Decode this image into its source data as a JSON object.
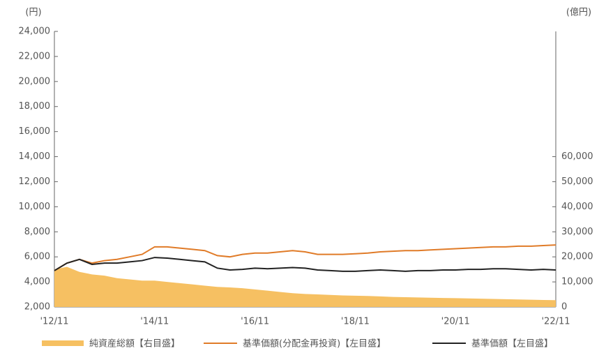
{
  "chart_data": {
    "type": "line",
    "y_unit": "(円)",
    "y2_unit": "(億円)",
    "categories": [
      "'12/11",
      null,
      null,
      null,
      null,
      null,
      null,
      null,
      "'14/11",
      null,
      null,
      null,
      null,
      null,
      null,
      null,
      "'16/11",
      null,
      null,
      null,
      null,
      null,
      null,
      null,
      "'18/11",
      null,
      null,
      null,
      null,
      null,
      null,
      null,
      "'20/11",
      null,
      null,
      null,
      null,
      null,
      null,
      null,
      "'22/11"
    ],
    "ylim": [
      2000,
      24000
    ],
    "yticks": [
      {
        "value": 2000,
        "label": "2,000"
      },
      {
        "value": 4000,
        "label": "4,000"
      },
      {
        "value": 6000,
        "label": "6,000"
      },
      {
        "value": 8000,
        "label": "8,000"
      },
      {
        "value": 10000,
        "label": "10,000"
      },
      {
        "value": 12000,
        "label": "12,000"
      },
      {
        "value": 14000,
        "label": "14,000"
      },
      {
        "value": 16000,
        "label": "16,000"
      },
      {
        "value": 18000,
        "label": "18,000"
      },
      {
        "value": 20000,
        "label": "20,000"
      },
      {
        "value": 22000,
        "label": "22,000"
      },
      {
        "value": 24000,
        "label": "24,000"
      }
    ],
    "y2lim": [
      0,
      110000
    ],
    "y2ticks": [
      0,
      {
        "value": 10000,
        "label": "10,000"
      },
      {
        "value": 20000,
        "label": "20,000"
      },
      {
        "value": 30000,
        "label": "30,000"
      },
      {
        "value": 40000,
        "label": "40,000"
      },
      {
        "value": 50000,
        "label": "50,000"
      },
      {
        "value": 60000,
        "label": "60,000"
      }
    ],
    "series": [
      {
        "name": "純資産総額【右目盛】",
        "color": "#f6c062",
        "kind": "area",
        "axis": "y2",
        "values": [
          15000,
          16000,
          14000,
          13000,
          12500,
          11500,
          11000,
          10500,
          10500,
          10000,
          9500,
          9000,
          8500,
          8000,
          7800,
          7500,
          7000,
          6500,
          6000,
          5500,
          5200,
          5000,
          4800,
          4600,
          4500,
          4400,
          4200,
          4000,
          3900,
          3800,
          3700,
          3600,
          3500,
          3400,
          3300,
          3200,
          3100,
          3000,
          2900,
          2800,
          2700
        ]
      },
      {
        "name": "基準価額(分配金再投資)【左目盛】",
        "color": "#e07b28",
        "kind": "line",
        "values": [
          4900,
          5500,
          5800,
          5500,
          5700,
          5800,
          6000,
          6200,
          6800,
          6800,
          6700,
          6600,
          6500,
          6100,
          6000,
          6200,
          6300,
          6300,
          6400,
          6500,
          6400,
          6200,
          6200,
          6200,
          6250,
          6300,
          6400,
          6450,
          6500,
          6500,
          6550,
          6600,
          6650,
          6700,
          6750,
          6800,
          6800,
          6850,
          6850,
          6900,
          6950
        ]
      },
      {
        "name": "基準価額【左目盛】",
        "color": "#222222",
        "kind": "line",
        "values": [
          4900,
          5500,
          5800,
          5400,
          5500,
          5500,
          5600,
          5700,
          5950,
          5900,
          5800,
          5700,
          5600,
          5100,
          4950,
          5000,
          5100,
          5050,
          5100,
          5150,
          5100,
          4950,
          4900,
          4850,
          4850,
          4900,
          4950,
          4900,
          4850,
          4900,
          4900,
          4950,
          4950,
          5000,
          5000,
          5050,
          5050,
          5000,
          4950,
          5000,
          4950
        ]
      }
    ]
  }
}
